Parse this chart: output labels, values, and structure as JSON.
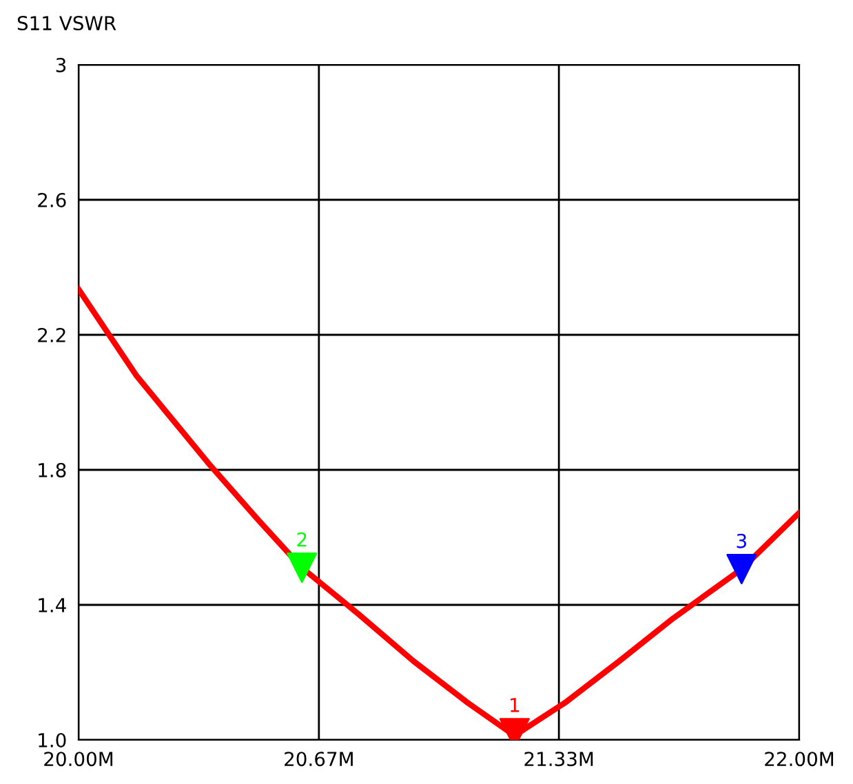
{
  "chart_data": {
    "type": "line",
    "title": "S11 VSWR",
    "xlim": [
      20.0,
      22.0
    ],
    "xticks": [
      {
        "value": 20.0,
        "label": "20.00M"
      },
      {
        "value": 20.667,
        "label": "20.67M"
      },
      {
        "value": 21.333,
        "label": "21.33M"
      },
      {
        "value": 22.0,
        "label": "22.00M"
      }
    ],
    "ylim": [
      1.0,
      3.0
    ],
    "yticks": [
      {
        "value": 1.0,
        "label": "1.0"
      },
      1.4,
      1.8,
      2.2,
      2.6,
      3
    ],
    "grid": true,
    "series": [
      {
        "color": "#ff0000",
        "x": [
          20.0,
          20.16,
          20.36,
          20.5,
          20.62,
          20.78,
          20.93,
          21.08,
          21.2,
          21.22,
          21.35,
          21.5,
          21.65,
          21.84,
          22.0
        ],
        "values": [
          2.335,
          2.08,
          1.82,
          1.65,
          1.51,
          1.37,
          1.233,
          1.11,
          1.02,
          1.02,
          1.11,
          1.233,
          1.36,
          1.506,
          1.673
        ]
      },
      {
        "type": "scatter",
        "name": "1",
        "color": "#ff0000",
        "marker": "triangle",
        "x": [
          21.21
        ],
        "values": [
          1.02
        ]
      },
      {
        "type": "scatter",
        "name": "2",
        "color": "#00ff00",
        "marker": "triangle",
        "x": [
          20.62
        ],
        "values": [
          1.51
        ]
      },
      {
        "type": "scatter",
        "name": "3",
        "color": "#0000ff",
        "marker": "triangle",
        "x": [
          21.84
        ],
        "values": [
          1.506
        ]
      }
    ]
  }
}
